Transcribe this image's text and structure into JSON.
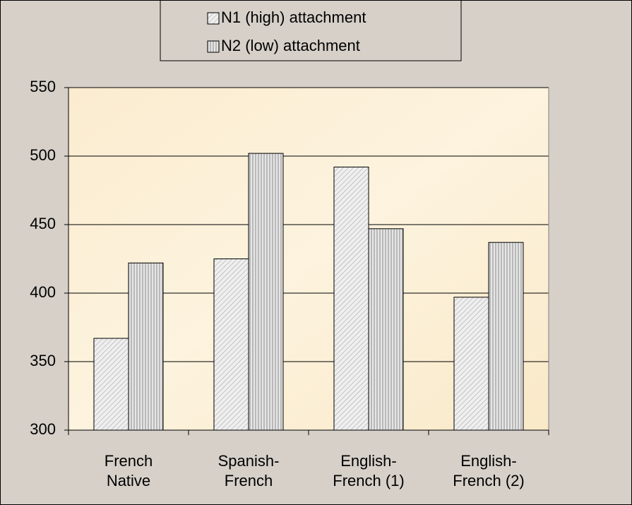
{
  "chart_data": {
    "type": "bar",
    "categories": [
      "French Native",
      "Spanish-French",
      "English-French (1)",
      "English-French (2)"
    ],
    "series": [
      {
        "name": "N1 (high) attachment",
        "color": "#d8d8d8",
        "values": [
          367,
          425,
          492,
          397
        ]
      },
      {
        "name": "N2 (low) attachment",
        "color": "#c8c8c8",
        "values": [
          422,
          502,
          447,
          437
        ]
      }
    ],
    "ylim": [
      300,
      550
    ],
    "yticks": [
      300,
      350,
      400,
      450,
      500,
      550
    ],
    "grid": true,
    "legend": "top"
  }
}
